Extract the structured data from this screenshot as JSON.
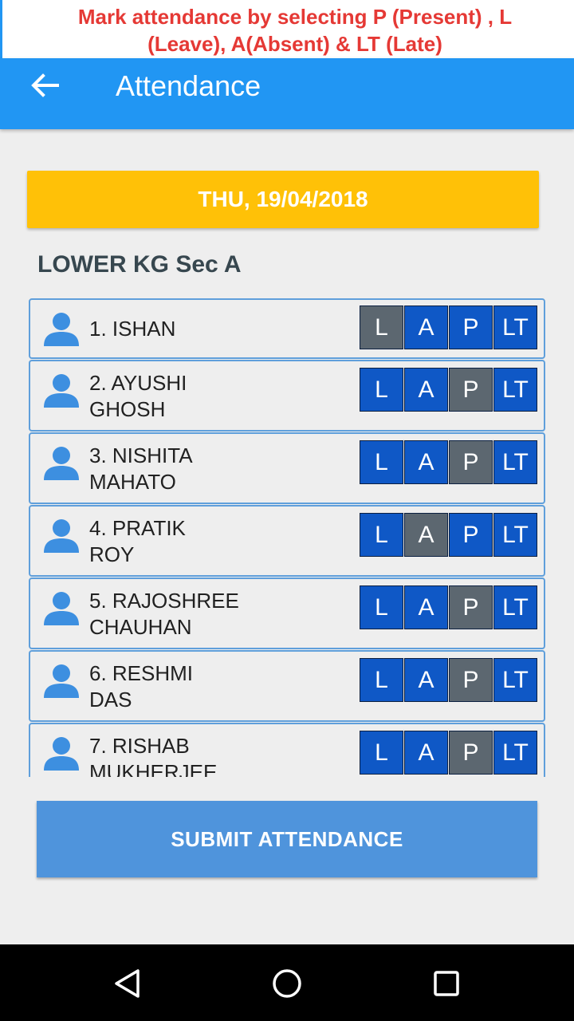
{
  "banner": {
    "line1": "Mark attendance by selecting P (Present) , L",
    "line2": "(Leave), A(Absent) & LT (Late)"
  },
  "appbar": {
    "title": "Attendance",
    "back_icon": "arrow-left-icon"
  },
  "date_label": "THU, 19/04/2018",
  "class_name": "LOWER KG Sec A",
  "button_labels": [
    "L",
    "A",
    "P",
    "LT"
  ],
  "students": [
    {
      "name_line1": "1. ISHAN",
      "name_line2": "",
      "selected": "L"
    },
    {
      "name_line1": "2. AYUSHI",
      "name_line2": "GHOSH",
      "selected": "P"
    },
    {
      "name_line1": "3. NISHITA",
      "name_line2": "MAHATO",
      "selected": "P"
    },
    {
      "name_line1": "4. PRATIK",
      "name_line2": "ROY",
      "selected": "A"
    },
    {
      "name_line1": "5. RAJOSHREE",
      "name_line2": "CHAUHAN",
      "selected": "P"
    },
    {
      "name_line1": "6. RESHMI",
      "name_line2": "DAS",
      "selected": "P"
    },
    {
      "name_line1": "7. RISHAB",
      "name_line2": "MUKHERJEE",
      "selected": "P"
    }
  ],
  "submit_label": "SUBMIT ATTENDANCE",
  "colors": {
    "appbar": "#2196f3",
    "date_button": "#ffc107",
    "option_button": "#0f58c6",
    "option_selected": "#5c6770",
    "banner_text": "#e53935",
    "submit": "#4f94dc"
  },
  "nav_icons": [
    "back-triangle-icon",
    "home-circle-icon",
    "recents-square-icon"
  ]
}
